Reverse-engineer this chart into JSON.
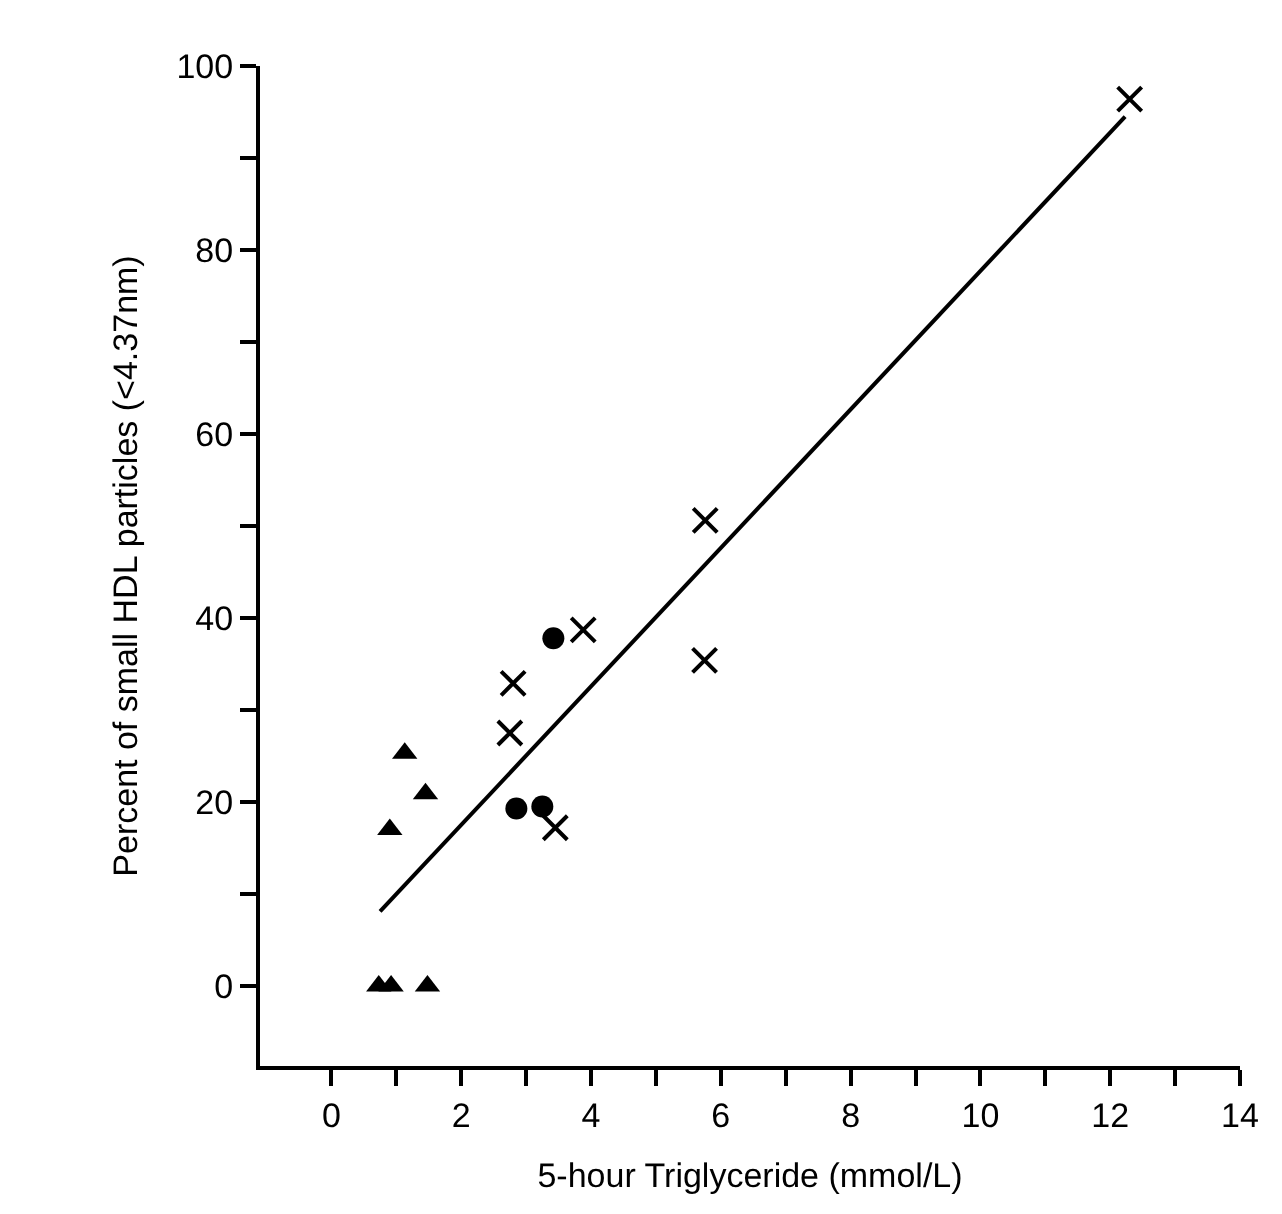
{
  "chart_data": {
    "type": "scatter",
    "xlabel": "5-hour Triglyceride (mmol/L)",
    "ylabel": "Percent of small HDL particles (<4.37nm)",
    "xlim": [
      -1.1,
      14
    ],
    "ylim": [
      -8.7,
      100
    ],
    "xticks": [
      0,
      {
        "value": 1,
        "label": null
      },
      2,
      {
        "value": 3,
        "label": null
      },
      4,
      {
        "value": 5,
        "label": null
      },
      6,
      {
        "value": 7,
        "label": null
      },
      8,
      {
        "value": 9,
        "label": null
      },
      10,
      {
        "value": 11,
        "label": null
      },
      12,
      {
        "value": 13,
        "label": null
      },
      14
    ],
    "yticks": [
      0,
      {
        "value": 10,
        "label": null
      },
      20,
      {
        "value": 30,
        "label": null
      },
      40,
      {
        "value": 50,
        "label": null
      },
      60,
      {
        "value": 70,
        "label": null
      },
      80,
      {
        "value": 90,
        "label": null
      },
      100
    ],
    "series": [
      {
        "marker": "triangle",
        "color": "#000000",
        "x": [
          1.13,
          1.45,
          0.9,
          0.73,
          0.92,
          1.48
        ],
        "values": [
          25.3,
          20.9,
          17.0,
          0,
          0,
          0
        ]
      },
      {
        "marker": "circle",
        "color": "#000000",
        "x": [
          3.42,
          2.85,
          3.25
        ],
        "values": [
          37.8,
          19.3,
          19.5
        ]
      },
      {
        "marker": "cross",
        "color": "#000000",
        "x": [
          3.88,
          2.8,
          2.75,
          3.45,
          5.75,
          5.76,
          12.3
        ],
        "values": [
          38.7,
          32.9,
          27.5,
          17.2,
          35.4,
          50.6,
          96.4
        ]
      },
      {
        "type": "line",
        "marker": "none",
        "line_style": "solid",
        "color": "#000000",
        "x": [
          0.75,
          12.23
        ],
        "values": [
          8.1,
          94.5
        ]
      }
    ]
  }
}
